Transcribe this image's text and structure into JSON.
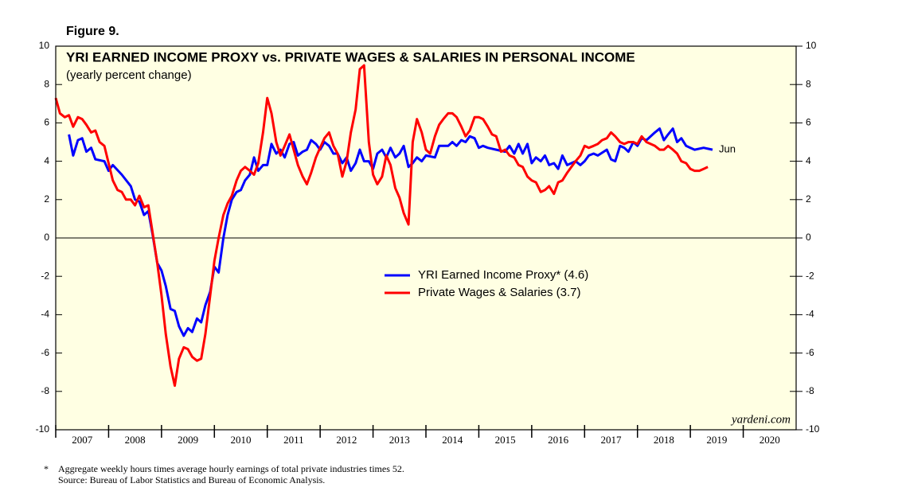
{
  "chart_data": {
    "type": "line",
    "figure_label": "Figure 9.",
    "title": "YRI EARNED INCOME PROXY vs. PRIVATE WAGES & SALARIES IN PERSONAL INCOME",
    "subtitle": "(yearly percent change)",
    "annotation": "Jun",
    "watermark": "yardeni.com",
    "footnote_marker": "*",
    "footnote": "Aggregate weekly hours times average hourly earnings of total private industries times 52.",
    "source": "Source: Bureau of Labor Statistics and Bureau of Economic Analysis.",
    "xlim": [
      2007,
      2021
    ],
    "xticks": [
      2007,
      2008,
      2009,
      2010,
      2011,
      2012,
      2013,
      2014,
      2015,
      2016,
      2017,
      2018,
      2019,
      2020
    ],
    "ylim": [
      -10,
      10
    ],
    "yticks": [
      -10,
      -8,
      -6,
      -4,
      -2,
      0,
      2,
      4,
      6,
      8,
      10
    ],
    "series": [
      {
        "name": "YRI Earned Income Proxy* (4.6)",
        "color": "#0000ff",
        "x": [
          2007.25,
          2007.33,
          2007.42,
          2007.5,
          2007.58,
          2007.67,
          2007.75,
          2007.92,
          2008.0,
          2008.08,
          2008.25,
          2008.42,
          2008.5,
          2008.58,
          2008.67,
          2008.75,
          2008.83,
          2008.92,
          2009.0,
          2009.08,
          2009.17,
          2009.25,
          2009.33,
          2009.42,
          2009.5,
          2009.58,
          2009.67,
          2009.75,
          2009.83,
          2009.92,
          2010.0,
          2010.08,
          2010.17,
          2010.25,
          2010.33,
          2010.42,
          2010.5,
          2010.58,
          2010.67,
          2010.75,
          2010.83,
          2010.92,
          2011.0,
          2011.08,
          2011.17,
          2011.25,
          2011.33,
          2011.42,
          2011.5,
          2011.58,
          2011.67,
          2011.75,
          2011.83,
          2011.92,
          2012.0,
          2012.08,
          2012.17,
          2012.25,
          2012.33,
          2012.42,
          2012.5,
          2012.58,
          2012.67,
          2012.75,
          2012.83,
          2012.92,
          2013.0,
          2013.08,
          2013.17,
          2013.25,
          2013.33,
          2013.42,
          2013.5,
          2013.58,
          2013.67,
          2013.75,
          2013.83,
          2013.92,
          2014.0,
          2014.17,
          2014.25,
          2014.42,
          2014.5,
          2014.58,
          2014.67,
          2014.75,
          2014.83,
          2014.92,
          2015.0,
          2015.08,
          2015.17,
          2015.33,
          2015.5,
          2015.58,
          2015.67,
          2015.75,
          2015.83,
          2015.92,
          2016.0,
          2016.08,
          2016.17,
          2016.25,
          2016.33,
          2016.42,
          2016.5,
          2016.58,
          2016.67,
          2016.75,
          2016.83,
          2016.92,
          2017.0,
          2017.08,
          2017.17,
          2017.25,
          2017.42,
          2017.5,
          2017.58,
          2017.67,
          2017.75,
          2017.83,
          2017.92,
          2018.0,
          2018.08,
          2018.17,
          2018.33,
          2018.42,
          2018.5,
          2018.58,
          2018.67,
          2018.75,
          2018.83,
          2018.92,
          2019.0,
          2019.08,
          2019.25,
          2019.42
        ],
        "values": [
          5.4,
          4.3,
          5.1,
          5.2,
          4.5,
          4.7,
          4.1,
          4.0,
          3.5,
          3.8,
          3.3,
          2.7,
          2.0,
          1.9,
          1.2,
          1.4,
          0.2,
          -1.3,
          -1.7,
          -2.5,
          -3.7,
          -3.8,
          -4.6,
          -5.1,
          -4.7,
          -4.9,
          -4.2,
          -4.4,
          -3.5,
          -2.8,
          -1.5,
          -1.8,
          0.0,
          1.2,
          2.0,
          2.4,
          2.5,
          3.0,
          3.3,
          4.2,
          3.5,
          3.8,
          3.8,
          4.9,
          4.4,
          4.6,
          4.2,
          4.9,
          5.0,
          4.3,
          4.5,
          4.6,
          5.1,
          4.9,
          4.6,
          5.0,
          4.8,
          4.4,
          4.4,
          3.9,
          4.2,
          3.5,
          3.9,
          4.6,
          4.0,
          4.0,
          3.6,
          4.4,
          4.6,
          4.2,
          4.7,
          4.2,
          4.4,
          4.8,
          3.7,
          3.9,
          4.2,
          4.0,
          4.3,
          4.2,
          4.8,
          4.8,
          5.0,
          4.8,
          5.1,
          5.0,
          5.3,
          5.2,
          4.7,
          4.8,
          4.7,
          4.6,
          4.5,
          4.8,
          4.4,
          4.9,
          4.4,
          4.9,
          3.9,
          4.2,
          4.0,
          4.3,
          3.8,
          3.9,
          3.6,
          4.3,
          3.8,
          3.9,
          4.0,
          3.8,
          4.0,
          4.3,
          4.4,
          4.3,
          4.6,
          4.1,
          4.0,
          4.8,
          4.7,
          4.5,
          5.0,
          4.8,
          5.2,
          5.1,
          5.5,
          5.7,
          5.1,
          5.4,
          5.7,
          5.0,
          5.2,
          4.8,
          4.7,
          4.6,
          4.7,
          4.6
        ]
      },
      {
        "name": "Private Wages & Salaries (3.7)",
        "color": "#ff0000",
        "x": [
          2007.0,
          2007.08,
          2007.17,
          2007.25,
          2007.33,
          2007.42,
          2007.5,
          2007.58,
          2007.67,
          2007.75,
          2007.83,
          2007.92,
          2008.0,
          2008.08,
          2008.17,
          2008.25,
          2008.33,
          2008.42,
          2008.5,
          2008.58,
          2008.67,
          2008.75,
          2008.83,
          2008.92,
          2009.0,
          2009.08,
          2009.17,
          2009.25,
          2009.33,
          2009.42,
          2009.5,
          2009.58,
          2009.67,
          2009.75,
          2009.83,
          2009.92,
          2010.0,
          2010.08,
          2010.17,
          2010.25,
          2010.33,
          2010.42,
          2010.5,
          2010.58,
          2010.67,
          2010.75,
          2010.83,
          2010.92,
          2011.0,
          2011.08,
          2011.17,
          2011.25,
          2011.33,
          2011.42,
          2011.5,
          2011.58,
          2011.67,
          2011.75,
          2011.83,
          2011.92,
          2012.0,
          2012.08,
          2012.17,
          2012.25,
          2012.33,
          2012.42,
          2012.5,
          2012.58,
          2012.67,
          2012.75,
          2012.83,
          2012.92,
          2013.0,
          2013.08,
          2013.17,
          2013.25,
          2013.33,
          2013.42,
          2013.5,
          2013.58,
          2013.67,
          2013.75,
          2013.83,
          2013.92,
          2014.0,
          2014.08,
          2014.17,
          2014.25,
          2014.33,
          2014.42,
          2014.5,
          2014.58,
          2014.67,
          2014.75,
          2014.83,
          2014.92,
          2015.0,
          2015.08,
          2015.17,
          2015.25,
          2015.33,
          2015.42,
          2015.5,
          2015.58,
          2015.67,
          2015.75,
          2015.83,
          2015.92,
          2016.0,
          2016.08,
          2016.17,
          2016.25,
          2016.33,
          2016.42,
          2016.5,
          2016.58,
          2016.67,
          2016.75,
          2016.83,
          2016.92,
          2017.0,
          2017.08,
          2017.17,
          2017.25,
          2017.33,
          2017.42,
          2017.5,
          2017.58,
          2017.67,
          2017.75,
          2017.83,
          2017.92,
          2018.0,
          2018.08,
          2018.17,
          2018.25,
          2018.33,
          2018.42,
          2018.5,
          2018.58,
          2018.67,
          2018.75,
          2018.83,
          2018.92,
          2019.0,
          2019.08,
          2019.17,
          2019.25,
          2019.33
        ],
        "values": [
          7.3,
          6.5,
          6.3,
          6.4,
          5.8,
          6.3,
          6.2,
          5.9,
          5.5,
          5.6,
          5.0,
          4.8,
          3.9,
          3.0,
          2.5,
          2.4,
          2.0,
          2.0,
          1.7,
          2.2,
          1.6,
          1.7,
          0.3,
          -1.3,
          -3.0,
          -5.0,
          -6.7,
          -7.7,
          -6.3,
          -5.7,
          -5.8,
          -6.2,
          -6.4,
          -6.3,
          -5.0,
          -3.0,
          -1.2,
          0.0,
          1.2,
          1.8,
          2.2,
          3.0,
          3.5,
          3.7,
          3.5,
          3.3,
          3.9,
          5.5,
          7.3,
          6.5,
          5.0,
          4.3,
          4.8,
          5.4,
          4.6,
          3.8,
          3.2,
          2.8,
          3.4,
          4.2,
          4.7,
          5.2,
          5.5,
          4.8,
          4.4,
          3.2,
          4.0,
          5.5,
          6.7,
          8.8,
          9.0,
          5.0,
          3.3,
          2.8,
          3.2,
          4.3,
          3.8,
          2.6,
          2.1,
          1.3,
          0.7,
          5.0,
          6.2,
          5.5,
          4.6,
          4.4,
          5.3,
          5.9,
          6.2,
          6.5,
          6.5,
          6.3,
          5.8,
          5.3,
          5.6,
          6.3,
          6.3,
          6.2,
          5.8,
          5.4,
          5.3,
          4.5,
          4.6,
          4.3,
          4.2,
          3.8,
          3.7,
          3.2,
          3.0,
          2.9,
          2.4,
          2.5,
          2.7,
          2.3,
          2.9,
          3.0,
          3.4,
          3.7,
          4.0,
          4.3,
          4.8,
          4.7,
          4.8,
          4.9,
          5.1,
          5.2,
          5.5,
          5.3,
          5.0,
          4.9,
          5.0,
          5.0,
          4.9,
          5.3,
          5.0,
          4.9,
          4.8,
          4.6,
          4.6,
          4.8,
          4.6,
          4.4,
          4.0,
          3.9,
          3.6,
          3.5,
          3.5,
          3.6,
          3.7
        ]
      }
    ],
    "zero_line": true
  }
}
